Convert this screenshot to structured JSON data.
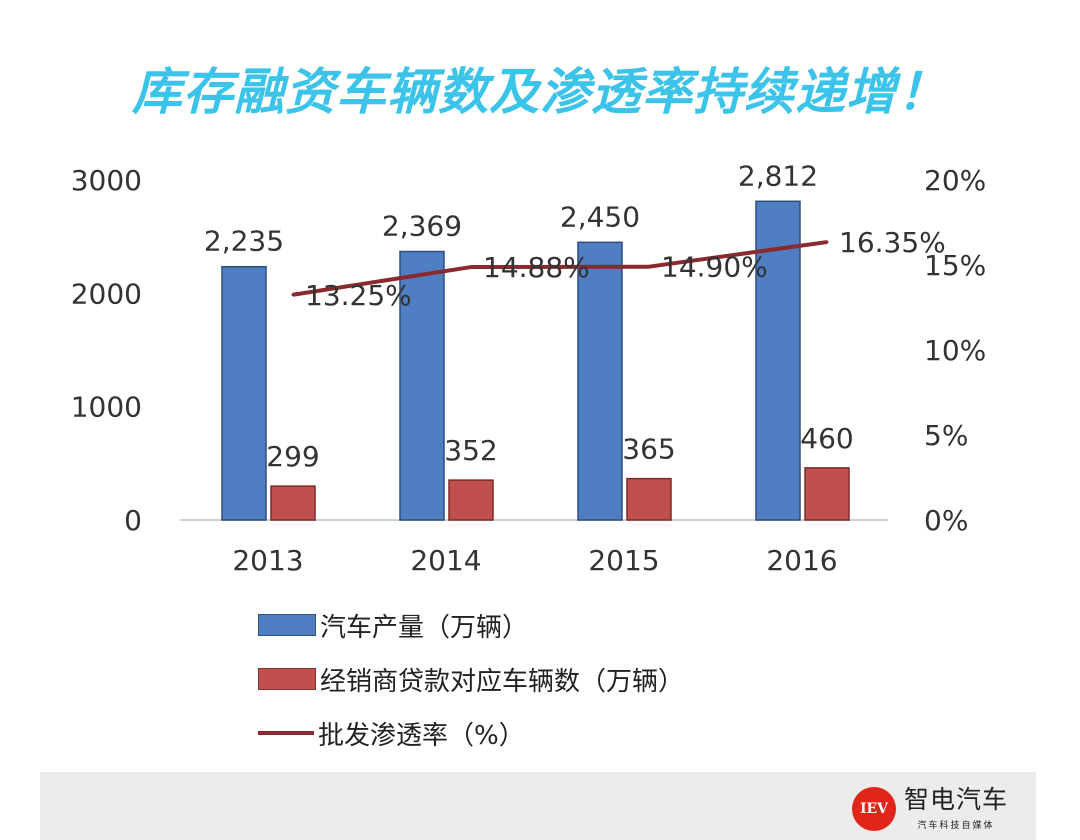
{
  "headline": "库存融资车辆数及渗透率持续递增！",
  "colors": {
    "headline": "#3cc3ea",
    "production": "#4f7ec2",
    "dealer_loans": "#c0504d",
    "penetration": "#8b2a2e",
    "axis_text": "#333333",
    "brand_red": "#e1251b"
  },
  "chart_data": {
    "type": "bar",
    "categories": [
      "2013",
      "2014",
      "2015",
      "2016"
    ],
    "series": [
      {
        "name": "汽车产量（万辆）",
        "kind": "bar",
        "axis": "left",
        "values": [
          2235,
          2369,
          2450,
          2812
        ],
        "data_labels": [
          "2,235",
          "2,369",
          "2,450",
          "2,812"
        ]
      },
      {
        "name": "经销商贷款对应车辆数（万辆）",
        "kind": "bar",
        "axis": "left",
        "values": [
          299,
          352,
          365,
          460
        ],
        "data_labels": [
          "299",
          "352",
          "365",
          "460"
        ]
      },
      {
        "name": "批发渗透率（%）",
        "kind": "line",
        "axis": "right",
        "values": [
          13.25,
          14.88,
          14.9,
          16.35
        ],
        "data_labels": [
          "13.25%",
          "14.88%",
          "14.90%",
          "16.35%"
        ]
      }
    ],
    "left_axis": {
      "ylim": [
        0,
        3000
      ],
      "ticks": [
        "0",
        "1000",
        "2000",
        "3000"
      ]
    },
    "right_axis": {
      "ylim": [
        0,
        20
      ],
      "ticks": [
        "0%",
        "5%",
        "10%",
        "15%",
        "20%"
      ]
    },
    "grid": false,
    "legend_position": "bottom-left"
  },
  "legend": {
    "production": "汽车产量（万辆）",
    "dealer_loans": "经销商贷款对应车辆数（万辆）",
    "penetration": "批发渗透率（%）"
  },
  "brand": {
    "mark": "IEV",
    "name": "智电汽车",
    "tagline": "汽车科技自媒体"
  }
}
